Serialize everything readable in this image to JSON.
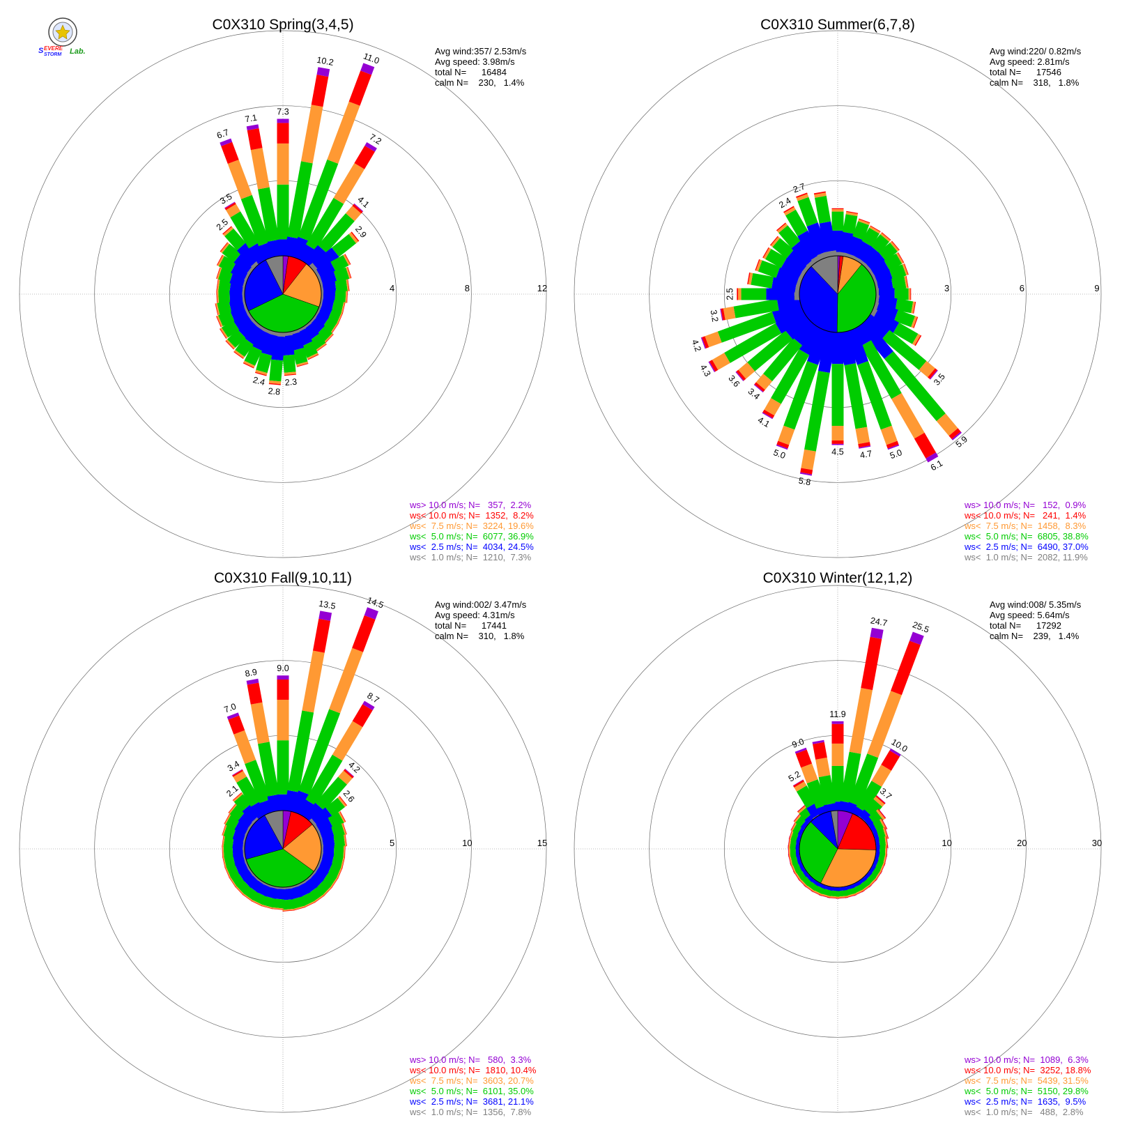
{
  "logo": {
    "name": "Severe Storm Lab.",
    "parts": [
      "Severe",
      "Storm",
      "Lab."
    ],
    "colors": [
      "#1a1aff",
      "#ff1a1a",
      "#1a9a1a"
    ]
  },
  "colors": {
    "ws_gt10": "#9400d3",
    "ws_lt10": "#ff0000",
    "ws_lt7_5": "#ff9933",
    "ws_lt5": "#00cc00",
    "ws_lt2_5": "#0000ff",
    "ws_lt1": "#808080",
    "grid": "#666666"
  },
  "chart_data": [
    {
      "type": "wind-rose",
      "title": "C0X310 Spring(3,4,5)",
      "stats": [
        "Avg wind:357/ 2.53m/s",
        "Avg speed: 3.98m/s",
        "total N=      16484",
        "calm N=    230,   1.4%"
      ],
      "r_max": 12,
      "ring_ticks": [
        4,
        8,
        12
      ],
      "bar_values": [
        7.3,
        10.2,
        11.0,
        7.2,
        4.1,
        2.9,
        1.9,
        1.7,
        1.5,
        1.4,
        1.3,
        1.3,
        1.3,
        1.4,
        1.5,
        1.7,
        1.9,
        2.3,
        2.8,
        2.4,
        2.2,
        2.0,
        1.9,
        1.8,
        1.7,
        1.6,
        1.5,
        1.5,
        1.6,
        1.8,
        2.0,
        2.5,
        3.5,
        6.7,
        7.1
      ],
      "label_indices": [
        0,
        1,
        2,
        3,
        4,
        5,
        17,
        18,
        19,
        31,
        32,
        33,
        34
      ],
      "pie": [
        2.2,
        8.2,
        19.6,
        36.9,
        24.5,
        7.3
      ],
      "legend": [
        {
          "text": "ws> 10.0 m/s; N=   357,  2.2%",
          "color": "#9400d3"
        },
        {
          "text": "ws< 10.0 m/s; N=  1352,  8.2%",
          "color": "#ff0000"
        },
        {
          "text": "ws<  7.5 m/s; N=  3224, 19.6%",
          "color": "#ff9933"
        },
        {
          "text": "ws<  5.0 m/s; N=  6077, 36.9%",
          "color": "#00cc00"
        },
        {
          "text": "ws<  2.5 m/s; N=  4034, 24.5%",
          "color": "#0000ff"
        },
        {
          "text": "ws<  1.0 m/s; N=  1210,  7.3%",
          "color": "#808080"
        }
      ]
    },
    {
      "type": "wind-rose",
      "title": "C0X310 Summer(6,7,8)",
      "stats": [
        "Avg wind:220/ 0.82m/s",
        "Avg speed: 2.81m/s",
        "total N=      17546",
        "calm N=    318,   1.8%"
      ],
      "r_max": 9,
      "ring_ticks": [
        3,
        6,
        9
      ],
      "bar_values": [
        1.9,
        1.8,
        1.6,
        1.5,
        1.5,
        1.5,
        1.4,
        1.4,
        1.3,
        1.4,
        1.6,
        1.8,
        2.2,
        3.5,
        5.9,
        6.1,
        5.0,
        4.7,
        4.5,
        5.8,
        5.0,
        4.1,
        3.4,
        3.6,
        4.3,
        4.2,
        3.2,
        2.5,
        2.1,
        1.9,
        1.8,
        1.8,
        2.0,
        2.4,
        2.7,
        2.6
      ],
      "label_indices": [
        13,
        14,
        15,
        16,
        17,
        18,
        19,
        20,
        21,
        22,
        23,
        24,
        25,
        26,
        27,
        33,
        34
      ],
      "pie": [
        0.9,
        1.4,
        8.3,
        38.8,
        37.0,
        11.9
      ],
      "legend": [
        {
          "text": "ws> 10.0 m/s; N=   152,  0.9%",
          "color": "#9400d3"
        },
        {
          "text": "ws< 10.0 m/s; N=   241,  1.4%",
          "color": "#ff0000"
        },
        {
          "text": "ws<  7.5 m/s; N=  1458,  8.3%",
          "color": "#ff9933"
        },
        {
          "text": "ws<  5.0 m/s; N=  6805, 38.8%",
          "color": "#00cc00"
        },
        {
          "text": "ws<  2.5 m/s; N=  6490, 37.0%",
          "color": "#0000ff"
        },
        {
          "text": "ws<  1.0 m/s; N=  2082, 11.9%",
          "color": "#808080"
        }
      ]
    },
    {
      "type": "wind-rose",
      "title": "C0X310 Fall(9,10,11)",
      "stats": [
        "Avg wind:002/ 3.47m/s",
        "Avg speed: 4.31m/s",
        "total N=      17441",
        "calm N=    310,   1.8%"
      ],
      "r_max": 15,
      "ring_ticks": [
        5,
        10,
        15
      ],
      "bar_values": [
        9.0,
        13.5,
        14.5,
        8.7,
        4.2,
        2.6,
        2.0,
        1.8,
        1.7,
        1.6,
        1.6,
        1.6,
        1.6,
        1.6,
        1.6,
        1.6,
        1.6,
        1.6,
        1.5,
        1.5,
        1.5,
        1.5,
        1.5,
        1.5,
        1.5,
        1.5,
        1.5,
        1.5,
        1.6,
        1.7,
        1.8,
        2.1,
        3.4,
        7.0,
        8.9
      ],
      "label_indices": [
        0,
        1,
        2,
        3,
        4,
        5,
        31,
        32,
        33,
        34
      ],
      "pie": [
        3.3,
        10.4,
        20.7,
        35.0,
        21.1,
        7.8
      ],
      "legend": [
        {
          "text": "ws> 10.0 m/s; N=   580,  3.3%",
          "color": "#9400d3"
        },
        {
          "text": "ws< 10.0 m/s; N=  1810, 10.4%",
          "color": "#ff0000"
        },
        {
          "text": "ws<  7.5 m/s; N=  3603, 20.7%",
          "color": "#ff9933"
        },
        {
          "text": "ws<  5.0 m/s; N=  6101, 35.0%",
          "color": "#00cc00"
        },
        {
          "text": "ws<  2.5 m/s; N=  3681, 21.1%",
          "color": "#0000ff"
        },
        {
          "text": "ws<  1.0 m/s; N=  1356,  7.8%",
          "color": "#808080"
        }
      ]
    },
    {
      "type": "wind-rose",
      "title": "C0X310 Winter(12,1,2)",
      "stats": [
        "Avg wind:008/ 5.35m/s",
        "Avg speed: 5.64m/s",
        "total N=      17292",
        "calm N=    239,   1.4%"
      ],
      "r_max": 30,
      "ring_ticks": [
        10,
        20,
        30
      ],
      "bar_values": [
        11.9,
        24.7,
        25.5,
        10.0,
        3.7,
        2.5,
        2.0,
        1.8,
        1.6,
        1.5,
        1.5,
        1.5,
        1.5,
        1.5,
        1.5,
        1.5,
        1.5,
        1.5,
        1.5,
        1.5,
        1.5,
        1.5,
        1.5,
        1.5,
        1.5,
        1.5,
        1.5,
        1.5,
        1.5,
        1.6,
        1.8,
        2.2,
        5.2,
        9.0,
        9.5
      ],
      "label_indices": [
        0,
        1,
        2,
        3,
        4,
        32,
        33
      ],
      "pie": [
        6.3,
        18.8,
        31.5,
        29.8,
        9.5,
        2.8
      ],
      "legend": [
        {
          "text": "ws> 10.0 m/s; N=  1089,  6.3%",
          "color": "#9400d3"
        },
        {
          "text": "ws< 10.0 m/s; N=  3252, 18.8%",
          "color": "#ff0000"
        },
        {
          "text": "ws<  7.5 m/s; N=  5439, 31.5%",
          "color": "#ff9933"
        },
        {
          "text": "ws<  5.0 m/s; N=  5150, 29.8%",
          "color": "#00cc00"
        },
        {
          "text": "ws<  2.5 m/s; N=  1635,  9.5%",
          "color": "#0000ff"
        },
        {
          "text": "ws<  1.0 m/s; N=   488,  2.8%",
          "color": "#808080"
        }
      ]
    }
  ]
}
